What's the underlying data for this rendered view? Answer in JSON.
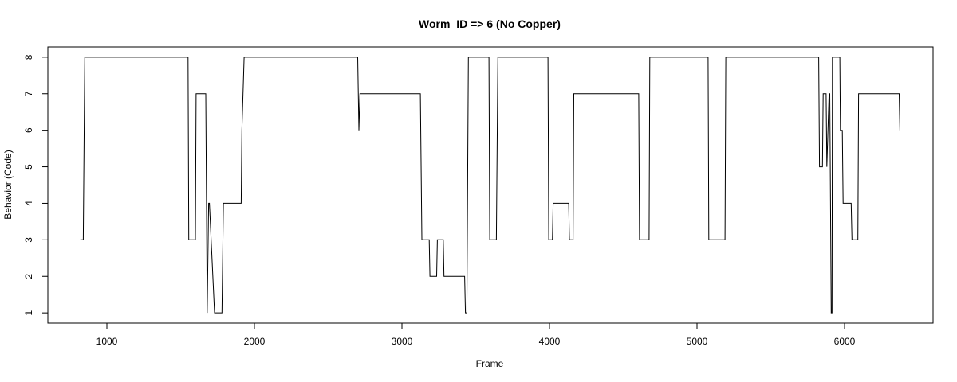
{
  "chart_data": {
    "type": "line",
    "title": "Worm_ID => 6 (No Copper)",
    "xlabel": "Frame",
    "ylabel": "Behavior (Code)",
    "xlim": [
      600,
      6600
    ],
    "ylim": [
      0.72,
      8.28
    ],
    "xticks": [
      1000,
      2000,
      3000,
      4000,
      5000,
      6000
    ],
    "yticks": [
      1,
      2,
      3,
      4,
      5,
      6,
      7,
      8
    ],
    "grid": false,
    "series": [
      {
        "x": [
          820,
          840,
          850,
          1550,
          1555,
          1600,
          1605,
          1670,
          1680,
          1690,
          1695,
          1730,
          1735,
          1780,
          1790,
          1910,
          1915,
          1930,
          2700,
          2708,
          2715,
          3125,
          3135,
          3185,
          3190,
          3235,
          3240,
          3280,
          3285,
          3425,
          3430,
          3440,
          3450,
          3590,
          3595,
          3640,
          3650,
          3990,
          3995,
          4020,
          4025,
          4130,
          4135,
          4160,
          4165,
          4605,
          4610,
          4675,
          4680,
          5075,
          5080,
          5190,
          5195,
          5825,
          5830,
          5850,
          5855,
          5875,
          5880,
          5895,
          5900,
          5910,
          5915,
          5918,
          5922,
          5968,
          5972,
          5985,
          5990,
          6045,
          6050,
          6090,
          6095,
          6370,
          6375
        ],
        "y": [
          3,
          3,
          8,
          8,
          3,
          3,
          7,
          7,
          1,
          4,
          4,
          1,
          1,
          1,
          4,
          4,
          6,
          8,
          8,
          6,
          7,
          7,
          3,
          3,
          2,
          2,
          3,
          3,
          2,
          2,
          1,
          1,
          8,
          8,
          3,
          3,
          8,
          8,
          3,
          3,
          4,
          4,
          3,
          3,
          7,
          7,
          3,
          3,
          8,
          8,
          3,
          3,
          8,
          8,
          5,
          5,
          7,
          7,
          5,
          7,
          7,
          1,
          1,
          8,
          8,
          8,
          6,
          6,
          4,
          4,
          3,
          3,
          7,
          7,
          6
        ]
      }
    ]
  }
}
